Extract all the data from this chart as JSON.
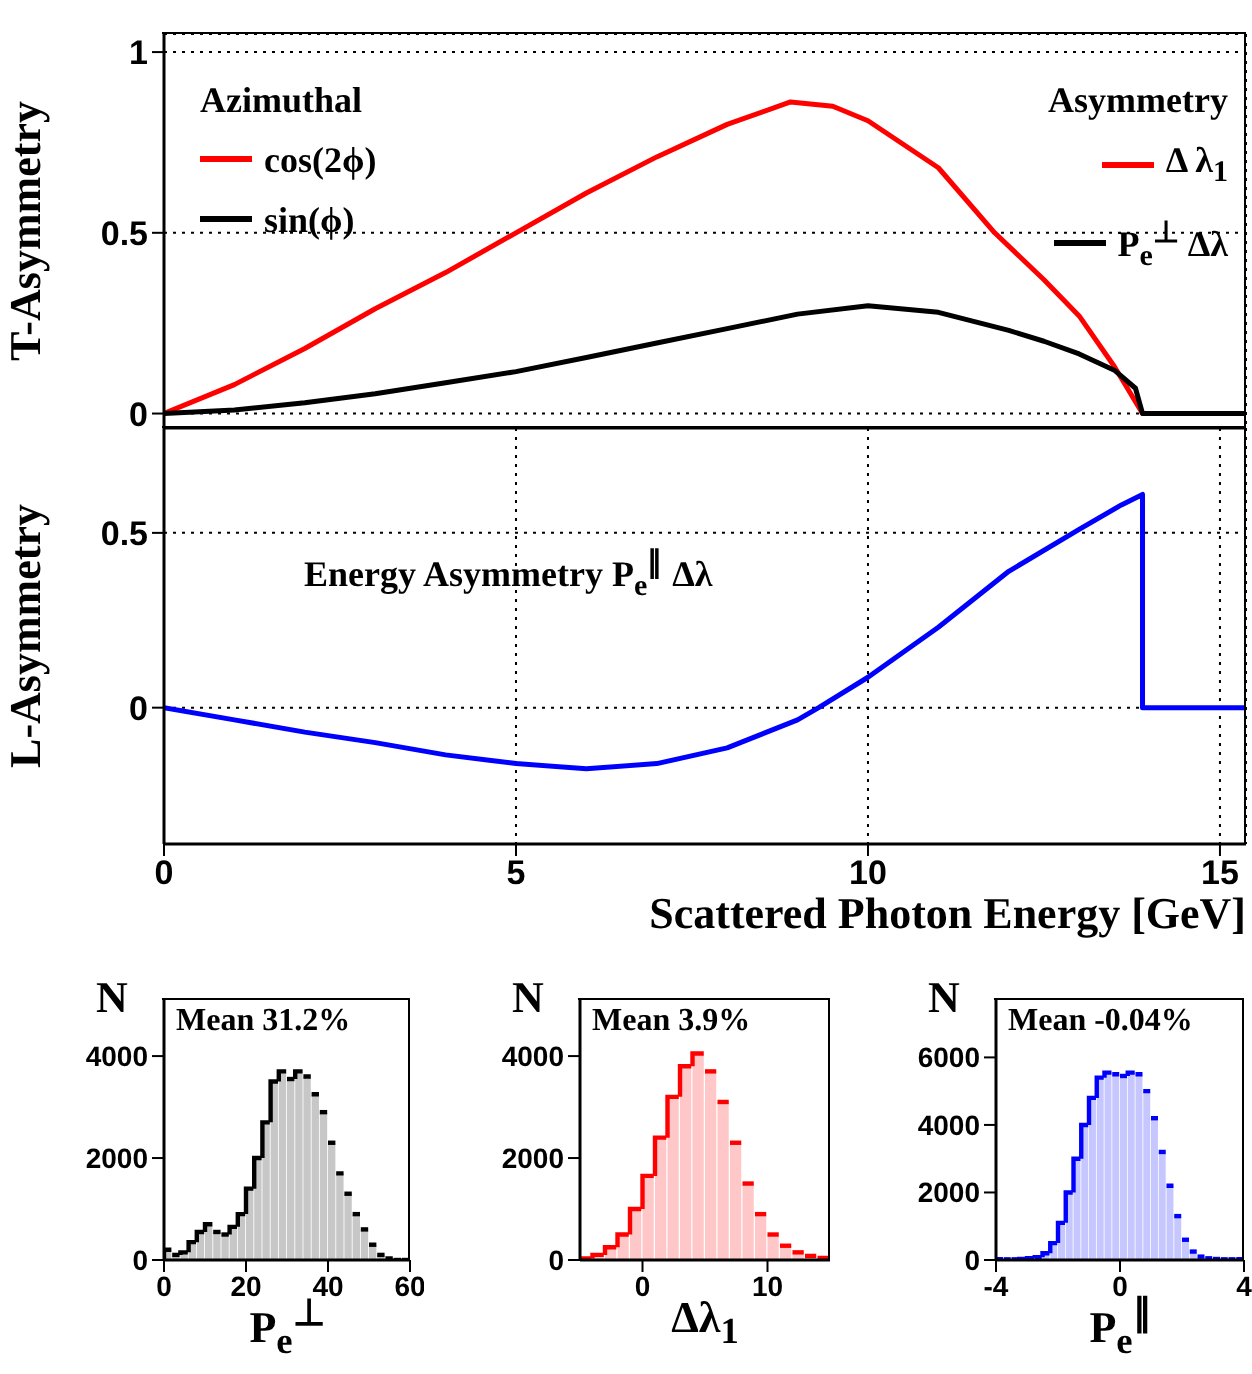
{
  "chart_data": [
    {
      "type": "line",
      "ylabel": "T-Asymmetry",
      "legend_title": "Azimuthal",
      "legend": "top left",
      "xlim": [
        0,
        15.37
      ],
      "xticks": [
        0,
        5,
        10,
        15
      ],
      "ylim": [
        -0.04,
        1.05
      ],
      "yticks": [
        0,
        0.5,
        1
      ],
      "grid": true,
      "tick_labels": "y",
      "marker": "none",
      "line_style": "solid",
      "annotations": [
        "Asymmetry",
        "Δ λ$_{1}$",
        "P$_{e}$$^{⊥}$ Δλ"
      ],
      "series": [
        {
          "name": "cos(2ϕ)",
          "color": "#ff0000",
          "x": [
            0,
            1,
            2,
            3,
            4,
            5,
            6,
            7,
            8,
            8.9,
            9.5,
            10,
            11,
            11.8,
            12.5,
            13,
            13.5,
            13.9,
            15.37
          ],
          "values": [
            0,
            0.08,
            0.18,
            0.29,
            0.39,
            0.5,
            0.61,
            0.71,
            0.8,
            0.862,
            0.85,
            0.81,
            0.68,
            0.5,
            0.37,
            0.27,
            0.13,
            0,
            0
          ]
        },
        {
          "name": "sin(ϕ)",
          "color": "#000000",
          "x": [
            0,
            1,
            2,
            3,
            4,
            5,
            6,
            7,
            8,
            9,
            10,
            11,
            12,
            12.5,
            13,
            13.5,
            13.8,
            13.9,
            15.37
          ],
          "values": [
            0,
            0.01,
            0.03,
            0.055,
            0.085,
            0.116,
            0.155,
            0.195,
            0.235,
            0.275,
            0.298,
            0.28,
            0.23,
            0.2,
            0.165,
            0.12,
            0.07,
            0,
            0
          ]
        }
      ]
    },
    {
      "type": "line",
      "ylabel": "L-Asymmetry",
      "xlabel": "Scattered Photon Energy [GeV]",
      "xlim": [
        0,
        15.37
      ],
      "xticks": [
        0,
        5,
        10,
        15
      ],
      "ylim": [
        -0.39,
        0.8
      ],
      "yticks": [
        0,
        0.5
      ],
      "grid": true,
      "marker": "none",
      "line_style": "solid",
      "annotations": [
        "Energy Asymmetry P$_{e}$$^{∥}$ Δλ"
      ],
      "series": [
        {
          "color": "#0000ff",
          "x": [
            0,
            1,
            2,
            3,
            4,
            5,
            6,
            7,
            8,
            9,
            9.3,
            10,
            11,
            12,
            13,
            13.6,
            13.9,
            13.9,
            15.37
          ],
          "values": [
            0,
            -0.035,
            -0.07,
            -0.1,
            -0.135,
            -0.16,
            -0.175,
            -0.16,
            -0.115,
            -0.035,
            0,
            0.087,
            0.23,
            0.39,
            0.51,
            0.58,
            0.61,
            0,
            0
          ]
        }
      ]
    },
    {
      "type": "histogram",
      "ylabel": "N",
      "xlabel": "P$_{e}$$^{⊥}$",
      "color": "#000000",
      "xlim": [
        0,
        60
      ],
      "xticks": [
        0,
        20,
        40,
        60
      ],
      "ylim": [
        0,
        5100
      ],
      "yticks": [
        0,
        2000,
        4000
      ],
      "annotations": [
        "Mean 31.2%"
      ],
      "bins": [
        0,
        2,
        4,
        6,
        8,
        10,
        12,
        14,
        16,
        18,
        20,
        22,
        24,
        26,
        28,
        30,
        32,
        34,
        36,
        38,
        40,
        42,
        44,
        46,
        48,
        50,
        52,
        54,
        56,
        58,
        60
      ],
      "values": [
        200,
        100,
        150,
        350,
        550,
        700,
        550,
        500,
        650,
        900,
        1400,
        2000,
        2700,
        3500,
        3700,
        3550,
        3700,
        3600,
        3250,
        2900,
        2300,
        1700,
        1300,
        900,
        600,
        300,
        100,
        30,
        0,
        0
      ]
    },
    {
      "type": "histogram",
      "ylabel": "N",
      "xlabel": "Δλ$_{1}$",
      "color": "#ff0000",
      "xlim": [
        -5,
        15
      ],
      "xticks": [
        0,
        10
      ],
      "ylim": [
        0,
        5100
      ],
      "yticks": [
        0,
        2000,
        4000
      ],
      "annotations": [
        "Mean 3.9%"
      ],
      "bins": [
        -5,
        -4,
        -3,
        -2,
        -1,
        0,
        1,
        2,
        3,
        4,
        5,
        6,
        7,
        8,
        9,
        10,
        11,
        12,
        13,
        14,
        15
      ],
      "values": [
        30,
        100,
        250,
        500,
        1000,
        1650,
        2400,
        3200,
        3800,
        4050,
        3700,
        3100,
        2300,
        1500,
        900,
        500,
        280,
        150,
        80,
        40
      ]
    },
    {
      "type": "histogram",
      "ylabel": "N",
      "xlabel": "P$_{e}$$^{∥}$",
      "color": "#0000ff",
      "xlim": [
        -4,
        4
      ],
      "xticks": [
        -4,
        0,
        4
      ],
      "ylim": [
        0,
        7700
      ],
      "yticks": [
        0,
        2000,
        4000,
        6000
      ],
      "annotations": [
        "Mean -0.04%"
      ],
      "bins": [
        -4,
        -3.75,
        -3.5,
        -3.25,
        -3,
        -2.75,
        -2.5,
        -2.25,
        -2,
        -1.75,
        -1.5,
        -1.25,
        -1,
        -0.75,
        -0.5,
        -0.25,
        0,
        0.25,
        0.5,
        0.75,
        1,
        1.25,
        1.5,
        1.75,
        2,
        2.25,
        2.5,
        2.75,
        3,
        3.25,
        3.5,
        3.75,
        4
      ],
      "values": [
        20,
        20,
        20,
        30,
        50,
        80,
        200,
        500,
        1100,
        2000,
        3000,
        4000,
        4800,
        5400,
        5550,
        5500,
        5450,
        5550,
        5500,
        5000,
        4200,
        3200,
        2200,
        1300,
        600,
        250,
        100,
        50,
        30,
        20,
        20,
        20
      ]
    }
  ]
}
